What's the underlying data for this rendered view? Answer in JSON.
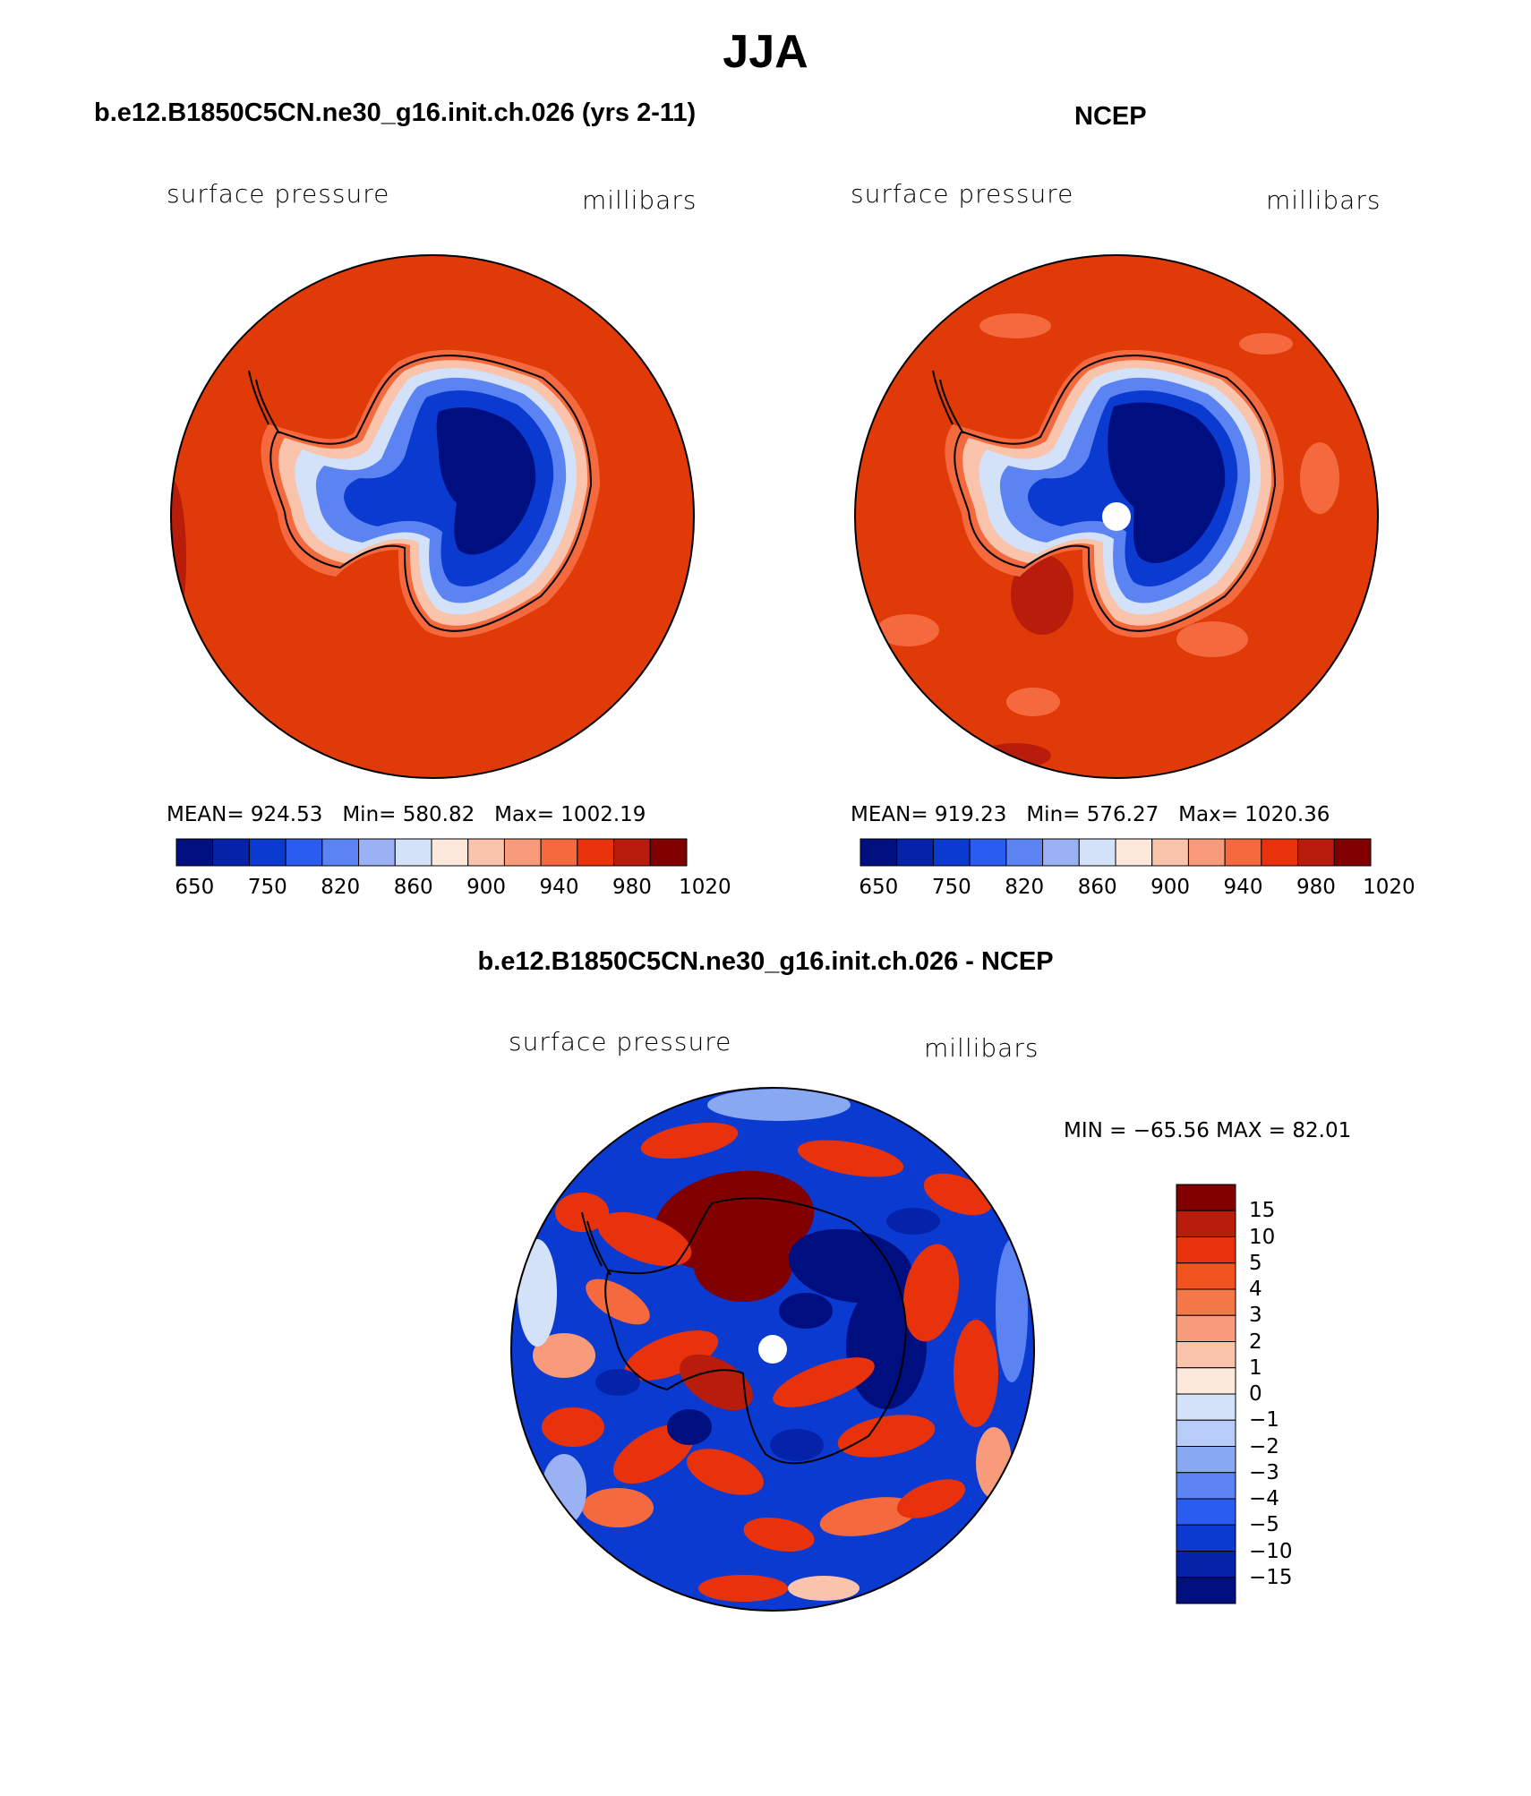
{
  "figure": {
    "title": "JJA",
    "panels": [
      {
        "title": "b.e12.B1850C5CN.ne30_g16.init.ch.026 (yrs 2-11)",
        "field_label": "surface pressure",
        "unit_label": "millibars",
        "stats": {
          "mean_label": "MEAN=",
          "mean": "924.53",
          "min_label": "Min=",
          "min": "580.82",
          "max_label": "Max=",
          "max": "1002.19"
        },
        "colorbar_ticks": [
          "650",
          "750",
          "820",
          "860",
          "900",
          "940",
          "980",
          "1020"
        ]
      },
      {
        "title": "NCEP",
        "field_label": "surface pressure",
        "unit_label": "millibars",
        "stats": {
          "mean_label": "MEAN=",
          "mean": "919.23",
          "min_label": "Min=",
          "min": "576.27",
          "max_label": "Max=",
          "max": "1020.36"
        },
        "colorbar_ticks": [
          "650",
          "750",
          "820",
          "860",
          "900",
          "940",
          "980",
          "1020"
        ]
      },
      {
        "title": "b.e12.B1850C5CN.ne30_g16.init.ch.026 - NCEP",
        "field_label": "surface pressure",
        "unit_label": "millibars",
        "stats_text": "MIN = −65.56 MAX =  82.01",
        "colorbar_ticks": [
          "15",
          "10",
          "5",
          "4",
          "3",
          "2",
          "1",
          "0",
          "−1",
          "−2",
          "−3",
          "−4",
          "−5",
          "−10",
          "−15"
        ]
      }
    ]
  },
  "colors": {
    "abs_scale": [
      "#000f7f",
      "#0523a8",
      "#0a3ad0",
      "#2b5cf0",
      "#5b84f2",
      "#9ab2f4",
      "#d3e2f8",
      "#fde9dc",
      "#f9c3ac",
      "#f89b7a",
      "#f46a3e",
      "#e8320c",
      "#b81c0a",
      "#800000"
    ],
    "diff_scale": [
      "#800000",
      "#b81c0a",
      "#e8320c",
      "#f2531f",
      "#f47848",
      "#f89b7a",
      "#f9c3ac",
      "#fde9dc",
      "#d3e2f8",
      "#b7ccf6",
      "#89a8f2",
      "#5b84f2",
      "#2b5cf0",
      "#0a3ad0",
      "#0523a8",
      "#000f7f"
    ],
    "ocean_model": "#e03a08",
    "ocean_ncep": "#e03a08"
  },
  "chart_data": [
    {
      "type": "heatmap",
      "title": "b.e12.B1850C5CN.ne30_g16.init.ch.026 (yrs 2-11)",
      "projection": "south polar stereographic",
      "variable": "surface pressure",
      "units": "millibars",
      "mean": 924.53,
      "min": 580.82,
      "max": 1002.19,
      "contour_levels": [
        650,
        700,
        750,
        800,
        820,
        840,
        860,
        880,
        900,
        920,
        940,
        960,
        980,
        1000,
        1020
      ]
    },
    {
      "type": "heatmap",
      "title": "NCEP",
      "projection": "south polar stereographic",
      "variable": "surface pressure",
      "units": "millibars",
      "mean": 919.23,
      "min": 576.27,
      "max": 1020.36,
      "contour_levels": [
        650,
        700,
        750,
        800,
        820,
        840,
        860,
        880,
        900,
        920,
        940,
        960,
        980,
        1000,
        1020
      ]
    },
    {
      "type": "heatmap",
      "title": "b.e12.B1850C5CN.ne30_g16.init.ch.026 - NCEP",
      "projection": "south polar stereographic",
      "variable": "surface pressure",
      "units": "millibars",
      "min": -65.56,
      "max": 82.01,
      "contour_levels": [
        -15,
        -10,
        -5,
        -4,
        -3,
        -2,
        -1,
        0,
        1,
        2,
        3,
        4,
        5,
        10,
        15
      ]
    }
  ]
}
